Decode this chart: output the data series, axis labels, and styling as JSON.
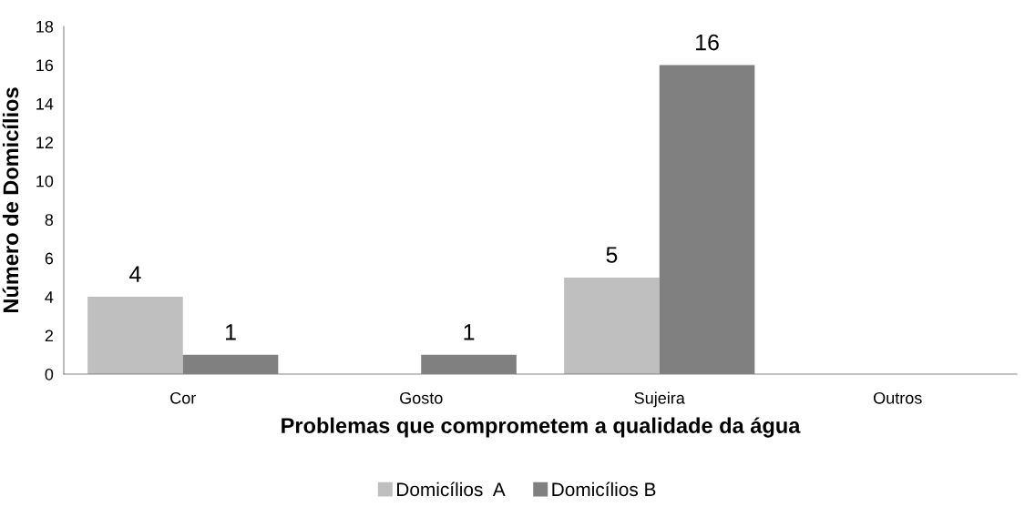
{
  "chart_data": {
    "type": "bar",
    "xlabel": "Problemas que comprometem a qualidade da água",
    "ylabel": "Número de Domicílios",
    "categories": [
      "Cor",
      "Gosto",
      "Sujeira",
      "Outros"
    ],
    "series": [
      {
        "name": "Domicílios  A",
        "color": "#bfbfbf",
        "values": [
          4,
          0,
          5,
          0
        ],
        "value_labels": [
          "4",
          null,
          "5",
          null
        ]
      },
      {
        "name": "Domicílios B",
        "color": "#808080",
        "values": [
          1,
          1,
          16,
          0
        ],
        "value_labels": [
          "1",
          "1",
          "16",
          null
        ]
      }
    ],
    "ylim": [
      0,
      18
    ],
    "yticks": [
      0,
      2,
      4,
      6,
      8,
      10,
      12,
      14,
      16,
      18
    ],
    "grid": false,
    "legend": "bottom"
  }
}
